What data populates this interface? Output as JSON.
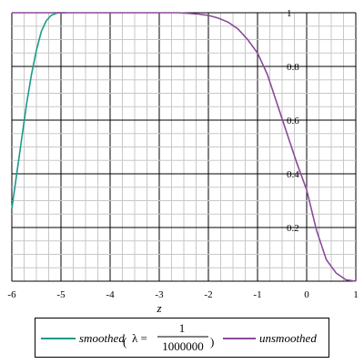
{
  "chart_data": {
    "type": "line",
    "xlabel": "z",
    "xlim": [
      -6,
      1
    ],
    "ylim": [
      0,
      1
    ],
    "x_ticks": [
      "-6",
      "-5",
      "-4",
      "-3",
      "-2",
      "-1",
      "0",
      "1"
    ],
    "y_ticks": [
      "0.2",
      "0.4",
      "0.6",
      "0.8",
      "1"
    ],
    "grid": true,
    "legend_position": "bottom",
    "series": [
      {
        "name": "smoothed",
        "name_lambda": "λ =",
        "name_num": "1",
        "name_den": "1000000",
        "color": "#1a9a8a",
        "x": [
          -6.0,
          -5.9,
          -5.8,
          -5.7,
          -5.6,
          -5.5,
          -5.4,
          -5.3,
          -5.2,
          -5.1,
          -5.05,
          -5.0,
          -4.9
        ],
        "y": [
          0.27,
          0.4,
          0.53,
          0.66,
          0.77,
          0.86,
          0.93,
          0.97,
          0.99,
          0.998,
          1.0,
          1.0,
          1.0
        ]
      },
      {
        "name": "unsmoothed",
        "color": "#8a4a9a",
        "x": [
          -6.0,
          -5.0,
          -4.0,
          -3.0,
          -2.6,
          -2.2,
          -2.0,
          -1.8,
          -1.6,
          -1.4,
          -1.2,
          -1.0,
          -0.8,
          -0.6,
          -0.4,
          -0.2,
          0.0,
          0.2,
          0.4,
          0.6,
          0.8,
          1.0
        ],
        "y": [
          1.0,
          1.0,
          1.0,
          1.0,
          1.0,
          0.995,
          0.99,
          0.98,
          0.965,
          0.94,
          0.9,
          0.85,
          0.77,
          0.66,
          0.55,
          0.44,
          0.34,
          0.19,
          0.08,
          0.03,
          0.005,
          0.0
        ]
      }
    ]
  }
}
